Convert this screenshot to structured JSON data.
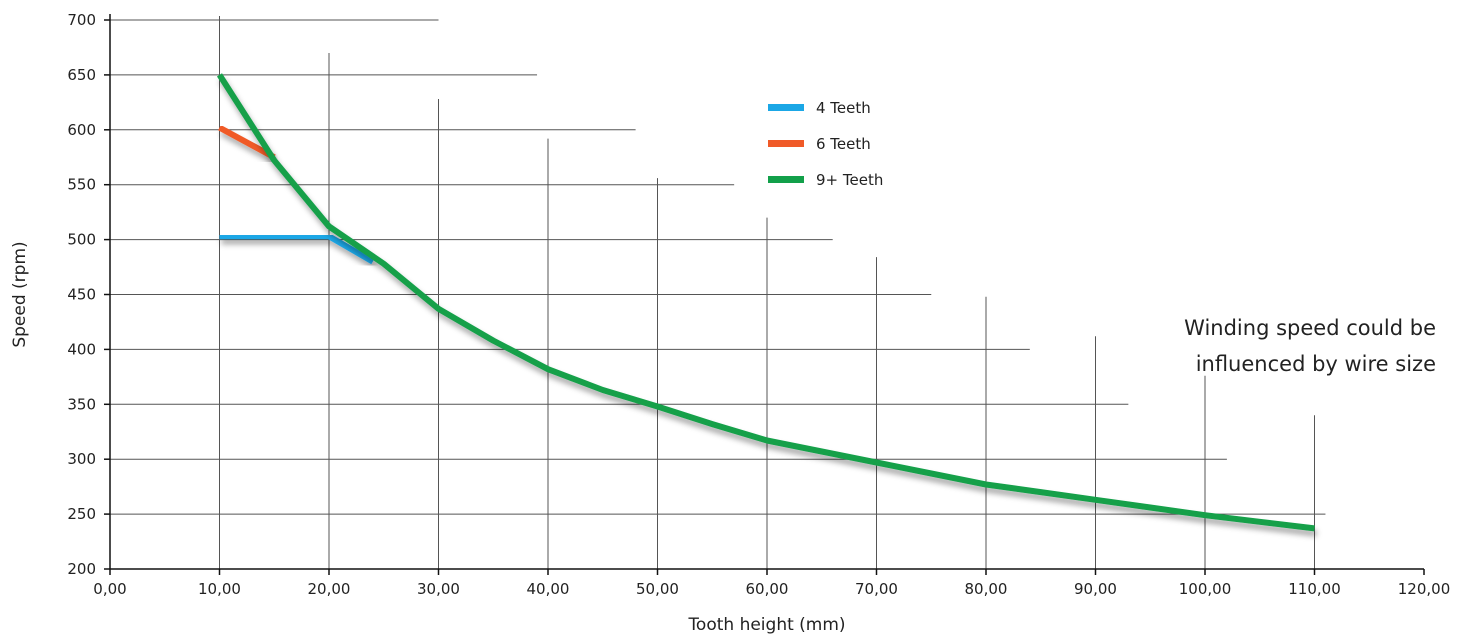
{
  "chart_data": {
    "type": "line",
    "xlabel": "Tooth height (mm)",
    "ylabel": "Speed (rpm)",
    "xlim": [
      0,
      120
    ],
    "ylim": [
      200,
      700
    ],
    "x_ticks": [
      0,
      10,
      20,
      30,
      40,
      50,
      60,
      70,
      80,
      90,
      100,
      110,
      120
    ],
    "x_tick_labels": [
      "0,00",
      "10,00",
      "20,00",
      "30,00",
      "40,00",
      "50,00",
      "60,00",
      "70,00",
      "80,00",
      "90,00",
      "100,00",
      "110,00",
      "120,00"
    ],
    "y_ticks": [
      200,
      250,
      300,
      350,
      400,
      450,
      500,
      550,
      600,
      650,
      700
    ],
    "y_tick_labels": [
      "200",
      "250",
      "300",
      "350",
      "400",
      "450",
      "500",
      "550",
      "600",
      "650",
      "700"
    ],
    "grid": true,
    "legend": {
      "placement": "top-center"
    },
    "series": [
      {
        "name": "4 Teeth",
        "color": "#1ba7e6",
        "points": [
          [
            10,
            503
          ],
          [
            20,
            503
          ],
          [
            24,
            480
          ]
        ]
      },
      {
        "name": "6 Teeth",
        "color": "#f05a28",
        "points": [
          [
            10,
            602
          ],
          [
            15,
            575
          ]
        ]
      },
      {
        "name": "9+ Teeth",
        "color": "#12a04a",
        "points": [
          [
            10,
            650
          ],
          [
            15,
            572
          ],
          [
            20,
            512
          ],
          [
            25,
            478
          ],
          [
            30,
            437
          ],
          [
            35,
            408
          ],
          [
            40,
            382
          ],
          [
            45,
            363
          ],
          [
            50,
            348
          ],
          [
            55,
            332
          ],
          [
            60,
            317
          ],
          [
            65,
            307
          ],
          [
            70,
            297
          ],
          [
            75,
            287
          ],
          [
            80,
            277
          ],
          [
            85,
            270
          ],
          [
            90,
            263
          ],
          [
            95,
            256
          ],
          [
            100,
            249
          ],
          [
            105,
            243
          ],
          [
            110,
            237
          ]
        ]
      }
    ],
    "annotation": [
      "Winding speed could be",
      "influenced by wire size"
    ]
  }
}
